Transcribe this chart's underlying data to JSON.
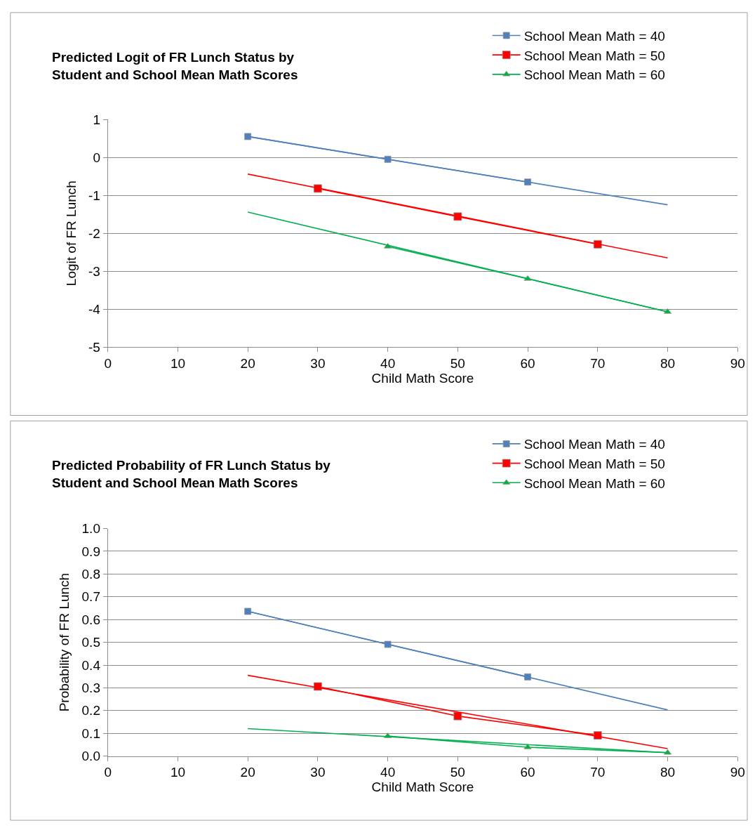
{
  "chart_data": [
    {
      "type": "line",
      "title": "Predicted Logit of FR Lunch Status by\nStudent and School Mean Math Scores",
      "xlabel": "Child Math Score",
      "ylabel": "Logit of FR Lunch",
      "xlim": [
        0,
        90
      ],
      "xticks": [
        0,
        10,
        20,
        30,
        40,
        50,
        60,
        70,
        80,
        90
      ],
      "ylim": [
        -5,
        1
      ],
      "yticks": [
        -5,
        -4,
        -3,
        -2,
        -1,
        0,
        1
      ],
      "grid": "y",
      "legend": "top right",
      "line_style": "solid",
      "series": [
        {
          "name": "School Mean Math = 40",
          "color": "#4f81bd",
          "marker": "square",
          "x": [
            20,
            40,
            60
          ],
          "values": [
            0.55,
            -0.05,
            -0.65
          ]
        },
        {
          "name": "School Mean Math = 50",
          "color": "#ff0000",
          "marker": "square",
          "x": [
            30,
            50,
            70
          ],
          "values": [
            -0.82,
            -1.56,
            -2.29
          ]
        },
        {
          "name": "School Mean Math = 60",
          "color": "#00b050",
          "marker": "triangle",
          "x": [
            40,
            60,
            80
          ],
          "values": [
            -2.35,
            -3.2,
            -4.07
          ]
        },
        {
          "color": "#4f81bd",
          "marker": "none",
          "x": [
            20,
            80
          ],
          "values": [
            0.55,
            -1.25
          ]
        },
        {
          "color": "#ff0000",
          "marker": "none",
          "x": [
            20,
            80
          ],
          "values": [
            -0.44,
            -2.65
          ]
        },
        {
          "color": "#00b050",
          "marker": "none",
          "x": [
            20,
            80
          ],
          "values": [
            -1.44,
            -4.07
          ]
        }
      ]
    },
    {
      "type": "line",
      "title": "Predicted Probability of FR Lunch Status by\nStudent and School Mean Math Scores",
      "xlabel": "Child Math Score",
      "ylabel": "Probability of FR Lunch",
      "xlim": [
        0,
        90
      ],
      "xticks": [
        0,
        10,
        20,
        30,
        40,
        50,
        60,
        70,
        80,
        90
      ],
      "ylim": [
        0,
        1
      ],
      "yticks": [
        {
          "value": 0,
          "label": "0.0"
        },
        {
          "value": 0.1,
          "label": "0.1"
        },
        {
          "value": 0.2,
          "label": "0.2"
        },
        {
          "value": 0.3,
          "label": "0.3"
        },
        {
          "value": 0.4,
          "label": "0.4"
        },
        {
          "value": 0.5,
          "label": "0.5"
        },
        {
          "value": 0.6,
          "label": "0.6"
        },
        {
          "value": 0.7,
          "label": "0.7"
        },
        {
          "value": 0.8,
          "label": "0.8"
        },
        {
          "value": 0.9,
          "label": "0.9"
        },
        {
          "value": 1,
          "label": "1.0"
        }
      ],
      "grid": "y",
      "legend": "top right",
      "line_style": "solid",
      "series": [
        {
          "name": "School Mean Math = 40",
          "color": "#4f81bd",
          "marker": "square",
          "x": [
            20,
            40,
            60
          ],
          "values": [
            0.636,
            0.491,
            0.348
          ]
        },
        {
          "name": "School Mean Math = 50",
          "color": "#ff0000",
          "marker": "square",
          "x": [
            30,
            50,
            70
          ],
          "values": [
            0.306,
            0.176,
            0.091
          ]
        },
        {
          "name": "School Mean Math = 60",
          "color": "#00b050",
          "marker": "triangle",
          "x": [
            40,
            60,
            80
          ],
          "values": [
            0.088,
            0.039,
            0.015
          ]
        },
        {
          "color": "#4f81bd",
          "marker": "none",
          "x": [
            20,
            80
          ],
          "values": [
            0.636,
            0.203
          ]
        },
        {
          "color": "#ff0000",
          "marker": "none",
          "x": [
            20,
            80
          ],
          "values": [
            0.355,
            0.033
          ]
        },
        {
          "color": "#00b050",
          "marker": "none",
          "x": [
            20,
            80
          ],
          "values": [
            0.121,
            0.015
          ]
        }
      ]
    }
  ]
}
